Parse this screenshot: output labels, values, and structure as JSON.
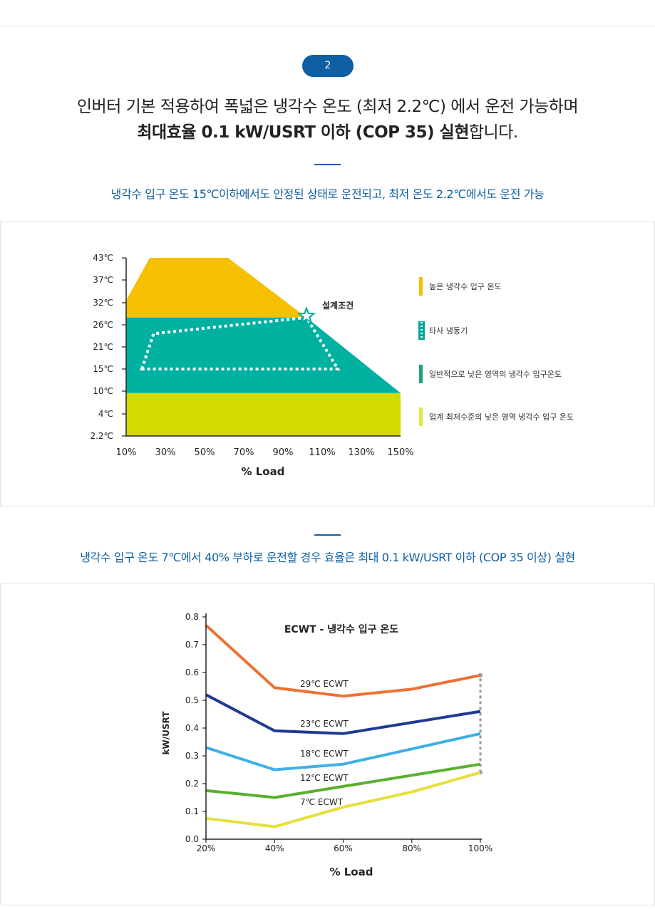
{
  "step": {
    "number": "2"
  },
  "headline": {
    "line1": "인버터 기본 적용하여 폭넓은 냉각수 온도 (최저 2.2℃) 에서 운전 가능하며",
    "line2_bold": "최대효율 0.1 kW/USRT 이하 (COP 35) 실현",
    "line2_rest": "합니다."
  },
  "section1": {
    "subtitle": "냉각수 입구 온도 15℃이하에서도 안정된 상태로 운전되고, 최저 온도 2.2℃에서도 운전 가능"
  },
  "section2": {
    "subtitle": "냉각수 입구 온도 7℃에서 40% 부하로 운전할 경우 효율은 최대 0.1 kW/USRT 이하 (COP 35 이상) 실현"
  },
  "chart_data": [
    {
      "type": "area",
      "xlabel": "% Load",
      "x_ticks": [
        "10%",
        "30%",
        "50%",
        "70%",
        "90%",
        "110%",
        "130%",
        "150%"
      ],
      "x_values": [
        10,
        30,
        50,
        70,
        90,
        110,
        130,
        150
      ],
      "y_ticks": [
        "2.2℃",
        "4℃",
        "10℃",
        "15℃",
        "21℃",
        "26℃",
        "32℃",
        "37℃",
        "43℃"
      ],
      "xlim": [
        10,
        150
      ],
      "regions": [
        {
          "name": "높은 냉각수 입구 온도",
          "color": "#f6bf00",
          "points": [
            [
              10,
              32
            ],
            [
              10,
              32.5
            ],
            [
              22,
              43
            ],
            [
              62,
              43
            ],
            [
              102,
              28
            ],
            [
              10,
              28
            ]
          ]
        },
        {
          "name": "일반적으로 낮은 영역의 냉각수 입구온도",
          "color": "#00b0a0",
          "points": [
            [
              10,
              28
            ],
            [
              102,
              28
            ],
            [
              150,
              9.5
            ],
            [
              10,
              9.5
            ]
          ]
        },
        {
          "name": "업계 최저수준의 낮은 영역 냉각수 입구 온도",
          "color": "#d4d900",
          "points": [
            [
              10,
              9.5
            ],
            [
              150,
              9.5
            ],
            [
              150,
              2.2
            ],
            [
              10,
              2.2
            ]
          ]
        }
      ],
      "dotted_region": {
        "name": "타사 냉동기",
        "color": "#ffffff",
        "points": [
          [
            18,
            15
          ],
          [
            24,
            24
          ],
          [
            102,
            28
          ],
          [
            118,
            15
          ]
        ]
      },
      "design_point": {
        "label": "설계조건",
        "x": 102,
        "y": 28
      },
      "legend": [
        {
          "label": "높은 냉각수 입구 온도",
          "color": "#f6bf00",
          "style": "solid"
        },
        {
          "label": "타사 냉동기",
          "color": "#00a898",
          "style": "dotted"
        },
        {
          "label": "일반적으로 낮은 영역의 냉각수 입구온도",
          "color": "#1aa37a",
          "style": "solid"
        },
        {
          "label": "업계 최저수준의 낮은 영역 냉각수 입구 온도",
          "color": "#e2e64a",
          "style": "solid"
        }
      ],
      "legend_position": "right"
    },
    {
      "type": "line",
      "title": "ECWT - 냉각수 입구 온도",
      "xlabel": "% Load",
      "ylabel": "kW/USRT",
      "x": [
        20,
        40,
        60,
        80,
        100
      ],
      "x_ticks": [
        "20%",
        "40%",
        "60%",
        "80%",
        "100%"
      ],
      "y_ticks": [
        "0.0",
        "0.1",
        "0.2",
        "0.3",
        "0.4",
        "0.5",
        "0.6",
        "0.7",
        "0.8"
      ],
      "ylim": [
        0,
        0.8
      ],
      "series": [
        {
          "name": "29℃ ECWT",
          "color": "#ec7233",
          "values": [
            0.77,
            0.545,
            0.515,
            0.54,
            0.59
          ]
        },
        {
          "name": "23℃ ECWT",
          "color": "#1f3a93",
          "values": [
            0.52,
            0.39,
            0.38,
            0.42,
            0.46
          ]
        },
        {
          "name": "18℃ ECWT",
          "color": "#3fb0e6",
          "values": [
            0.33,
            0.25,
            0.27,
            0.325,
            0.38
          ]
        },
        {
          "name": "12℃ ECWT",
          "color": "#5aaf2f",
          "values": [
            0.175,
            0.15,
            0.19,
            0.23,
            0.27
          ]
        },
        {
          "name": "7℃ ECWT",
          "color": "#e5e03a",
          "values": [
            0.075,
            0.045,
            0.115,
            0.17,
            0.24
          ]
        }
      ],
      "range_marker": {
        "x": 100,
        "from": 0.24,
        "to": 0.59,
        "color": "#999999"
      }
    }
  ]
}
